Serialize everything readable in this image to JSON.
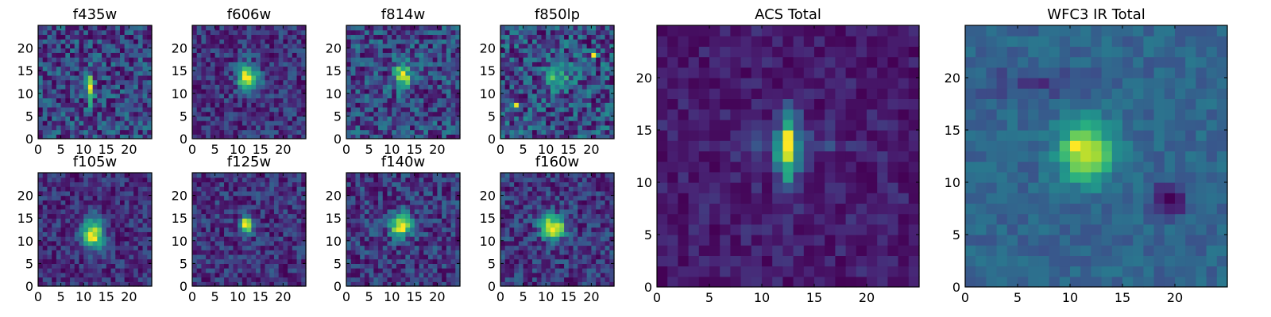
{
  "figure": {
    "colormap": "viridis",
    "background": "#ffffff"
  },
  "chart_data": [
    {
      "type": "heatmap",
      "title": "f435w",
      "grid_size": 25,
      "xticks": [
        0,
        5,
        10,
        15,
        20
      ],
      "yticks": [
        0,
        5,
        10,
        15,
        20
      ],
      "xlim": [
        0,
        25
      ],
      "ylim": [
        0,
        25
      ],
      "features": [
        {
          "x": 11,
          "y": 10.5,
          "amp": 1.0,
          "sx": 0.5,
          "sy": 2.2
        }
      ],
      "noise": 0.55,
      "base": 0.3
    },
    {
      "type": "heatmap",
      "title": "f606w",
      "grid_size": 25,
      "xticks": [
        0,
        5,
        10,
        15,
        20
      ],
      "yticks": [
        0,
        5,
        10,
        15,
        20
      ],
      "xlim": [
        0,
        25
      ],
      "ylim": [
        0,
        25
      ],
      "features": [
        {
          "x": 11,
          "y": 13.5,
          "amp": 0.9,
          "sx": 1.3,
          "sy": 2.0
        },
        {
          "x": 13,
          "y": 12.5,
          "amp": 0.6,
          "sx": 1.2,
          "sy": 1.5
        }
      ],
      "noise": 0.45,
      "base": 0.3
    },
    {
      "type": "heatmap",
      "title": "f814w",
      "grid_size": 25,
      "xticks": [
        0,
        5,
        10,
        15,
        20
      ],
      "yticks": [
        0,
        5,
        10,
        15,
        20
      ],
      "xlim": [
        0,
        25
      ],
      "ylim": [
        0,
        25
      ],
      "features": [
        {
          "x": 12,
          "y": 13.5,
          "amp": 0.8,
          "sx": 1.4,
          "sy": 2.0
        }
      ],
      "noise": 0.55,
      "base": 0.35
    },
    {
      "type": "heatmap",
      "title": "f850lp",
      "grid_size": 25,
      "xticks": [
        0,
        5,
        10,
        15,
        20
      ],
      "yticks": [
        0,
        5,
        10,
        15,
        20
      ],
      "xlim": [
        0,
        25
      ],
      "ylim": [
        0,
        25
      ],
      "features": [
        {
          "x": 3,
          "y": 7,
          "amp": 0.9,
          "sx": 0.6,
          "sy": 0.4
        },
        {
          "x": 20,
          "y": 18,
          "amp": 0.7,
          "sx": 0.5,
          "sy": 0.5
        },
        {
          "x": 12,
          "y": 13,
          "amp": 0.4,
          "sx": 2.0,
          "sy": 2.0
        }
      ],
      "noise": 0.55,
      "base": 0.3
    },
    {
      "type": "heatmap",
      "title": "f105w",
      "grid_size": 25,
      "xticks": [
        0,
        5,
        10,
        15,
        20
      ],
      "yticks": [
        0,
        5,
        10,
        15,
        20
      ],
      "xlim": [
        0,
        25
      ],
      "ylim": [
        0,
        25
      ],
      "features": [
        {
          "x": 11.5,
          "y": 11,
          "amp": 1.0,
          "sx": 1.7,
          "sy": 2.3
        }
      ],
      "noise": 0.35,
      "base": 0.3
    },
    {
      "type": "heatmap",
      "title": "f125w",
      "grid_size": 25,
      "xticks": [
        0,
        5,
        10,
        15,
        20
      ],
      "yticks": [
        0,
        5,
        10,
        15,
        20
      ],
      "xlim": [
        0,
        25
      ],
      "ylim": [
        0,
        25
      ],
      "features": [
        {
          "x": 11.5,
          "y": 13,
          "amp": 1.0,
          "sx": 0.9,
          "sy": 1.4
        }
      ],
      "noise": 0.35,
      "base": 0.22
    },
    {
      "type": "heatmap",
      "title": "f140w",
      "grid_size": 25,
      "xticks": [
        0,
        5,
        10,
        15,
        20
      ],
      "yticks": [
        0,
        5,
        10,
        15,
        20
      ],
      "xlim": [
        0,
        25
      ],
      "ylim": [
        0,
        25
      ],
      "features": [
        {
          "x": 11.5,
          "y": 13,
          "amp": 0.85,
          "sx": 1.6,
          "sy": 1.8
        }
      ],
      "noise": 0.35,
      "base": 0.32
    },
    {
      "type": "heatmap",
      "title": "f160w",
      "grid_size": 25,
      "xticks": [
        0,
        5,
        10,
        15,
        20
      ],
      "yticks": [
        0,
        5,
        10,
        15,
        20
      ],
      "xlim": [
        0,
        25
      ],
      "ylim": [
        0,
        25
      ],
      "features": [
        {
          "x": 11,
          "y": 12.5,
          "amp": 0.9,
          "sx": 1.8,
          "sy": 1.8
        }
      ],
      "noise": 0.35,
      "base": 0.32
    },
    {
      "type": "heatmap",
      "title": "ACS Total",
      "grid_size": 25,
      "xticks": [
        0,
        5,
        10,
        15,
        20
      ],
      "yticks": [
        0,
        5,
        10,
        15,
        20
      ],
      "xlim": [
        0,
        25
      ],
      "ylim": [
        0,
        25
      ],
      "features": [
        {
          "x": 12,
          "y": 12.5,
          "amp": 0.75,
          "sx": 0.7,
          "sy": 2.6
        },
        {
          "x": 12,
          "y": 14,
          "amp": 0.35,
          "sx": 0.4,
          "sy": 0.4
        },
        {
          "x": 12,
          "y": 13,
          "amp": 0.25,
          "sx": 3.0,
          "sy": 1.0
        }
      ],
      "noise": 0.22,
      "base": 0.32
    },
    {
      "type": "heatmap",
      "title": "WFC3 IR Total",
      "grid_size": 25,
      "xticks": [
        0,
        5,
        10,
        15,
        20
      ],
      "yticks": [
        0,
        5,
        10,
        15,
        20
      ],
      "xlim": [
        0,
        25
      ],
      "ylim": [
        0,
        25
      ],
      "features": [
        {
          "x": 11,
          "y": 12.5,
          "amp": 0.75,
          "sx": 1.8,
          "sy": 2.0
        },
        {
          "x": 10,
          "y": 13,
          "amp": 0.25,
          "sx": 0.5,
          "sy": 0.5
        },
        {
          "x": 19,
          "y": 8,
          "amp": -0.3,
          "sx": 1.2,
          "sy": 1.2
        },
        {
          "x": 6,
          "y": 19,
          "amp": -0.15,
          "sx": 3.0,
          "sy": 1.0
        }
      ],
      "noise": 0.18,
      "base": 0.3
    }
  ]
}
